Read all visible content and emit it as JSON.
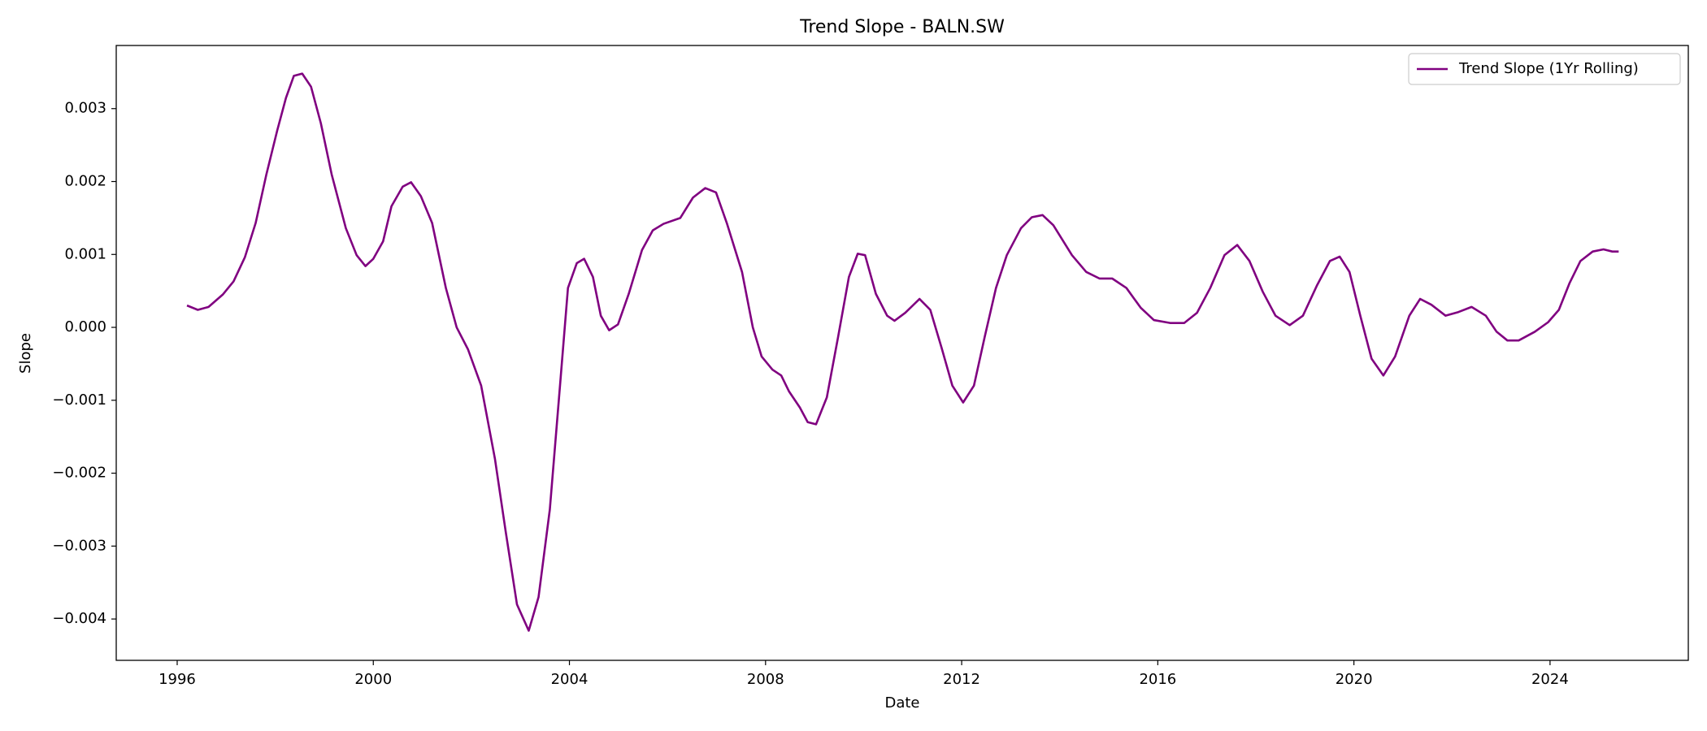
{
  "chart_data": {
    "type": "line",
    "title": "Trend Slope - BALN.SW",
    "x_label": "Date",
    "y_label": "Slope",
    "x": [
      1996.2,
      1996.42,
      1996.64,
      1996.93,
      1997.15,
      1997.38,
      1997.6,
      1997.82,
      1998.04,
      1998.22,
      1998.38,
      1998.55,
      1998.73,
      1998.93,
      1999.15,
      1999.44,
      1999.66,
      1999.84,
      2000.0,
      2000.2,
      2000.37,
      2000.6,
      2000.77,
      2000.97,
      2001.2,
      2001.48,
      2001.7,
      2001.93,
      2002.2,
      2002.48,
      2002.7,
      2002.93,
      2003.17,
      2003.37,
      2003.6,
      2003.82,
      2003.97,
      2004.15,
      2004.3,
      2004.48,
      2004.64,
      2004.81,
      2004.99,
      2005.21,
      2005.48,
      2005.7,
      2005.92,
      2006.26,
      2006.52,
      2006.77,
      2006.99,
      2007.21,
      2007.52,
      2007.74,
      2007.92,
      2008.14,
      2008.32,
      2008.48,
      2008.7,
      2008.86,
      2009.03,
      2009.25,
      2009.48,
      2009.7,
      2009.88,
      2010.03,
      2010.25,
      2010.48,
      2010.63,
      2010.85,
      2011.14,
      2011.36,
      2011.59,
      2011.81,
      2012.03,
      2012.25,
      2012.47,
      2012.7,
      2012.92,
      2013.21,
      2013.43,
      2013.65,
      2013.87,
      2014.25,
      2014.54,
      2014.81,
      2015.07,
      2015.36,
      2015.65,
      2015.92,
      2016.25,
      2016.54,
      2016.8,
      2017.07,
      2017.36,
      2017.62,
      2017.87,
      2018.14,
      2018.4,
      2018.69,
      2018.96,
      2019.25,
      2019.51,
      2019.71,
      2019.91,
      2020.13,
      2020.36,
      2020.6,
      2020.84,
      2021.13,
      2021.35,
      2021.58,
      2021.87,
      2022.13,
      2022.4,
      2022.69,
      2022.91,
      2023.13,
      2023.36,
      2023.69,
      2023.96,
      2024.18,
      2024.4,
      2024.62,
      2024.87,
      2025.09,
      2025.27,
      2025.4
    ],
    "series": [
      {
        "name": "Trend Slope (1Yr Rolling)",
        "color": "#800080",
        "values": [
          0.0003,
          0.00024,
          0.00028,
          0.00045,
          0.00063,
          0.00096,
          0.00143,
          0.0021,
          0.0027,
          0.00315,
          0.00345,
          0.00348,
          0.0033,
          0.0028,
          0.0021,
          0.00136,
          0.00099,
          0.00084,
          0.00094,
          0.00118,
          0.00166,
          0.00193,
          0.00199,
          0.0018,
          0.00143,
          0.00054,
          0.0,
          -0.0003,
          -0.0008,
          -0.0018,
          -0.0028,
          -0.0038,
          -0.00416,
          -0.0037,
          -0.0025,
          -0.0007,
          0.00054,
          0.00088,
          0.00094,
          0.00069,
          0.00016,
          -4e-05,
          4e-05,
          0.00046,
          0.00106,
          0.00133,
          0.00142,
          0.0015,
          0.00178,
          0.00191,
          0.00185,
          0.00143,
          0.00076,
          0.0,
          -0.0004,
          -0.00058,
          -0.00066,
          -0.00088,
          -0.0011,
          -0.0013,
          -0.00133,
          -0.00096,
          -0.00013,
          0.00069,
          0.00101,
          0.00099,
          0.00046,
          0.00016,
          9e-05,
          0.0002,
          0.00039,
          0.00024,
          -0.00028,
          -0.0008,
          -0.00103,
          -0.0008,
          -0.00013,
          0.00054,
          0.00099,
          0.00136,
          0.00151,
          0.00154,
          0.0014,
          0.00099,
          0.00076,
          0.00067,
          0.00067,
          0.00054,
          0.00027,
          0.0001,
          6e-05,
          6e-05,
          0.0002,
          0.00054,
          0.00099,
          0.00113,
          0.00091,
          0.00049,
          0.00016,
          3e-05,
          0.00016,
          0.00058,
          0.00091,
          0.00097,
          0.00076,
          0.00016,
          -0.00043,
          -0.00066,
          -0.0004,
          0.00016,
          0.00039,
          0.00031,
          0.00016,
          0.00021,
          0.00028,
          0.00016,
          -6e-05,
          -0.00018,
          -0.00018,
          -6e-05,
          7e-05,
          0.00024,
          0.00061,
          0.00091,
          0.00104,
          0.00107,
          0.00104,
          0.00104
        ]
      }
    ],
    "xlim": [
      1994.757,
      2026.82
    ],
    "xticks": [
      1996,
      2000,
      2004,
      2008,
      2012,
      2016,
      2020,
      2024
    ],
    "ylim": [
      -0.004567,
      0.003866
    ],
    "yticks": [
      {
        "value": -0.004,
        "label": "−0.004"
      },
      {
        "value": -0.003,
        "label": "−0.003"
      },
      {
        "value": -0.002,
        "label": "−0.002"
      },
      {
        "value": -0.001,
        "label": "−0.001"
      },
      {
        "value": 0,
        "label": "0.000"
      },
      {
        "value": 0.001,
        "label": "0.001"
      },
      {
        "value": 0.002,
        "label": "0.002"
      },
      {
        "value": 0.003,
        "label": "0.003"
      }
    ],
    "legend": "upper right"
  }
}
